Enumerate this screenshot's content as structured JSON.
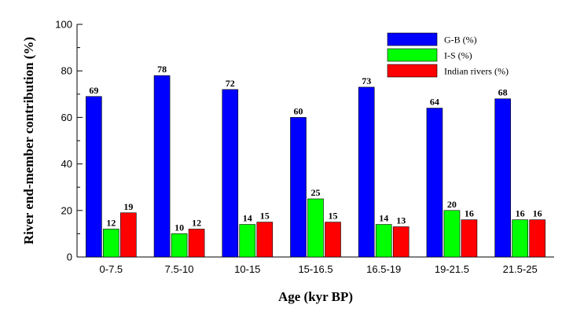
{
  "chart_data": {
    "type": "bar",
    "xlabel": "Age (kyr BP)",
    "ylabel": "River end-member contribution (%)",
    "ylim": [
      0,
      100
    ],
    "yticks": [
      0,
      20,
      40,
      60,
      80,
      100
    ],
    "categories": [
      "0-7.5",
      "7.5-10",
      "10-15",
      "15-16.5",
      "16.5-19",
      "19-21.5",
      "21.5-25"
    ],
    "series": [
      {
        "name": "G-B (%)",
        "color": "#0000ff",
        "values": [
          69,
          78,
          72,
          60,
          73,
          64,
          68
        ]
      },
      {
        "name": "I-S (%)",
        "color": "#00ff00",
        "values": [
          12,
          10,
          14,
          25,
          14,
          20,
          16
        ]
      },
      {
        "name": "Indian rivers (%)",
        "color": "#ff0000",
        "values": [
          19,
          12,
          15,
          15,
          13,
          16,
          16
        ]
      }
    ],
    "legend_position": "top-right",
    "grid": false,
    "show_data_labels": true
  }
}
